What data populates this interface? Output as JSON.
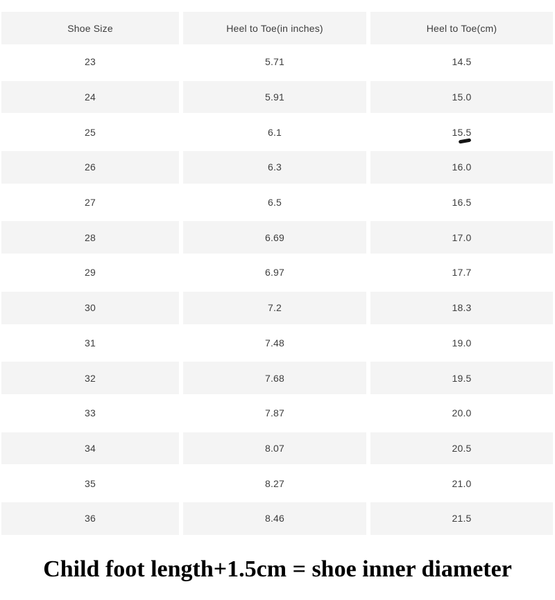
{
  "chart_data": {
    "type": "table",
    "columns": [
      "Shoe Size",
      "Heel to Toe(in inches)",
      "Heel to Toe(cm)"
    ],
    "rows": [
      [
        "23",
        "5.71",
        "14.5"
      ],
      [
        "24",
        "5.91",
        "15.0"
      ],
      [
        "25",
        "6.1",
        "15.5"
      ],
      [
        "26",
        "6.3",
        "16.0"
      ],
      [
        "27",
        "6.5",
        "16.5"
      ],
      [
        "28",
        "6.69",
        "17.0"
      ],
      [
        "29",
        "6.97",
        "17.7"
      ],
      [
        "30",
        "7.2",
        "18.3"
      ],
      [
        "31",
        "7.48",
        "19.0"
      ],
      [
        "32",
        "7.68",
        "19.5"
      ],
      [
        "33",
        "7.87",
        "20.0"
      ],
      [
        "34",
        "8.07",
        "20.5"
      ],
      [
        "35",
        "8.27",
        "21.0"
      ],
      [
        "36",
        "8.46",
        "21.5"
      ]
    ],
    "caption": "Child foot length+1.5cm = shoe inner diameter",
    "layout": "alternating row shading, white gutters between columns"
  },
  "annotations": {
    "pen_mark_under_value": "15.5"
  },
  "colors": {
    "row_alt_bg": "#f4f4f4",
    "header_bg": "#f4f4f4",
    "cell_text": "#3d3d3d",
    "note_text": "#000000",
    "pen_mark": "#141414",
    "page_bg": "#ffffff"
  }
}
